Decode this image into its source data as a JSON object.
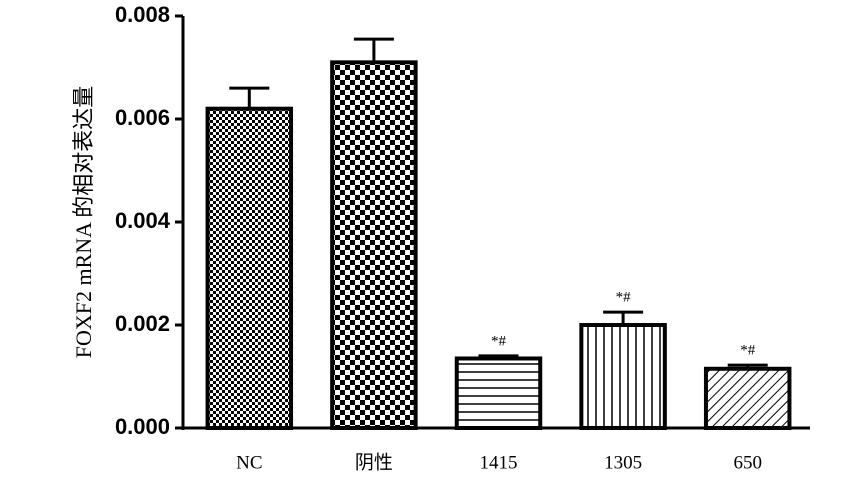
{
  "chart_data": {
    "type": "bar",
    "y_label": "FOXF2 mRNA 的相对表达量",
    "categories": [
      "NC",
      "阴性",
      "1415",
      "1305",
      "650"
    ],
    "values": [
      0.0062,
      0.0071,
      0.00135,
      0.002,
      0.00115
    ],
    "errors": [
      0.0004,
      0.00045,
      5e-05,
      0.00025,
      7e-05
    ],
    "value_annotations": [
      null,
      null,
      "*#",
      "*#",
      "*#"
    ],
    "patterns": [
      "checker-fine",
      "checker",
      "horizontal",
      "vertical",
      "diagonal"
    ],
    "color": "#000000",
    "ylim": [
      0,
      0.008
    ],
    "yticks": [
      {
        "value": 0,
        "label": "0.000"
      },
      0.002,
      0.004,
      0.006,
      0.008
    ]
  }
}
